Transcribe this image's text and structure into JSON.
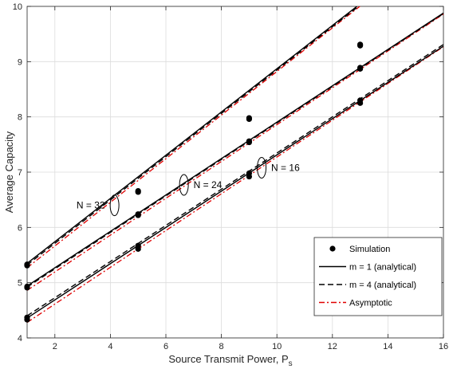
{
  "chart_data": {
    "type": "line",
    "title": "",
    "xlabel": "Source Transmit Power, P",
    "xlabel_subscript": "s",
    "ylabel": "Average Capacity",
    "xlim": [
      1,
      16
    ],
    "ylim": [
      4,
      10
    ],
    "xticks": [
      "2",
      "4",
      "6",
      "8",
      "10",
      "12",
      "14",
      "16"
    ],
    "yticks": [
      "4",
      "5",
      "6",
      "7",
      "8",
      "9",
      "10"
    ],
    "grid": true,
    "legend_position": "lower-right",
    "colors": {
      "analytical": "#000000",
      "asymptotic": "#e00000",
      "markers": "#000000"
    },
    "legend": [
      {
        "label": "Simulation",
        "style": "marker"
      },
      {
        "label": "m = 1 (analytical)",
        "style": "solid"
      },
      {
        "label": "m = 4 (analytical)",
        "style": "dashed"
      },
      {
        "label": "Asymptotic",
        "style": "dashdot"
      }
    ],
    "groups": [
      {
        "label": "N = 32",
        "m1": [
          [
            1,
            5.35
          ],
          [
            16,
            11.22
          ]
        ],
        "m4": [
          [
            1,
            5.32
          ],
          [
            16,
            11.2
          ]
        ],
        "asymptotic": [
          [
            1,
            5.27
          ],
          [
            16,
            11.19
          ]
        ],
        "simulation": [
          [
            1,
            5.33
          ],
          [
            1,
            5.31
          ],
          [
            5,
            6.66
          ],
          [
            5,
            6.64
          ],
          [
            9,
            7.98
          ],
          [
            9,
            7.96
          ],
          [
            13,
            9.31
          ],
          [
            13,
            9.29
          ]
        ]
      },
      {
        "label": "N = 24",
        "m1": [
          [
            1,
            4.94
          ],
          [
            16,
            9.88
          ]
        ],
        "m4": [
          [
            1,
            4.92
          ],
          [
            16,
            9.87
          ]
        ],
        "asymptotic": [
          [
            1,
            4.86
          ],
          [
            16,
            9.86
          ]
        ],
        "simulation": [
          [
            1,
            4.93
          ],
          [
            1,
            4.91
          ],
          [
            5,
            6.24
          ],
          [
            5,
            6.22
          ],
          [
            9,
            7.56
          ],
          [
            9,
            7.54
          ],
          [
            13,
            8.89
          ],
          [
            13,
            8.87
          ]
        ]
      },
      {
        "label": "N = 16",
        "m1": [
          [
            1,
            4.36
          ],
          [
            16,
            9.28
          ]
        ],
        "m4": [
          [
            1,
            4.4
          ],
          [
            16,
            9.31
          ]
        ],
        "asymptotic": [
          [
            1,
            4.28
          ],
          [
            16,
            9.27
          ]
        ],
        "simulation": [
          [
            1,
            4.37
          ],
          [
            1,
            4.33
          ],
          [
            5,
            5.67
          ],
          [
            5,
            5.61
          ],
          [
            9,
            6.98
          ],
          [
            9,
            6.92
          ],
          [
            13,
            8.3
          ],
          [
            13,
            8.25
          ]
        ]
      }
    ],
    "annotations": [
      {
        "text": "N = 32",
        "ellipse_at": [
          4.15,
          6.4
        ],
        "text_side": "left"
      },
      {
        "text": "N = 24",
        "ellipse_at": [
          6.65,
          6.77
        ],
        "text_side": "right"
      },
      {
        "text": "N = 16",
        "ellipse_at": [
          9.45,
          7.08
        ],
        "text_side": "right"
      }
    ]
  }
}
